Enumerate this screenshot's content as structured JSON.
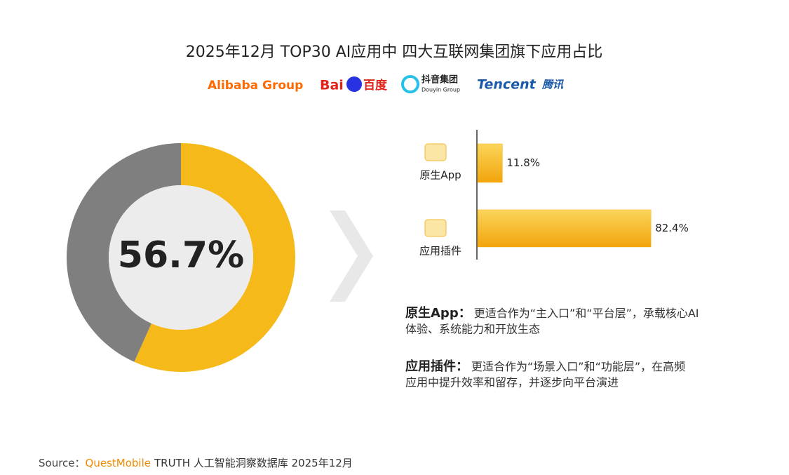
{
  "title": "2025年12月 TOP30 AI应用中 四大互联网集团旗下应用占比",
  "logos": [
    "Alibaba Group",
    "Bai",
    "百度",
    "抖音集团",
    "Douyin Group",
    "Tencent",
    "腾讯"
  ],
  "chart_data": [
    {
      "type": "pie",
      "values": [
        56.7,
        43.3
      ],
      "value_labels": [
        "56.7%",
        null
      ],
      "colors": [
        "#f6b91a",
        "#7f7f7f"
      ],
      "donut": true
    },
    {
      "type": "hbar",
      "categories": [
        "原生App",
        "应用插件"
      ],
      "values": [
        11.8,
        82.4
      ],
      "value_labels": [
        "11.8%",
        "82.4%"
      ],
      "color": "#f6b51c",
      "xlim": [
        0,
        100
      ]
    }
  ],
  "notes": [
    {
      "heading": "原生App：",
      "lines": [
        "更适合作为“主入口”和“平台层”，承载核心AI",
        "体验、系统能力和开放生态"
      ]
    },
    {
      "heading": "应用插件：",
      "lines": [
        "更适合作为“场景入口”和“功能层”，在高频",
        "应用中提升效率和留存，并逐步向平台演进"
      ]
    }
  ],
  "source": {
    "label": "Source：",
    "brand": "QuestMobile",
    "text": "TRUTH 人工智能洞察数据库 2025年12月"
  }
}
